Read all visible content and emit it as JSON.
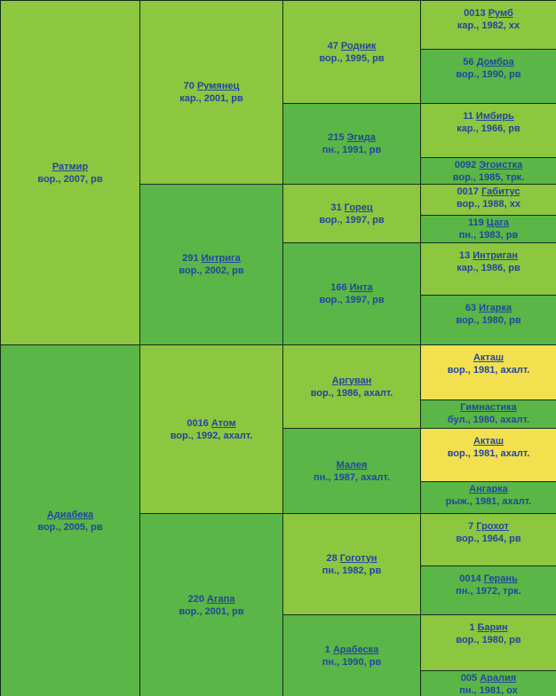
{
  "app": {
    "title": "Родословная лошади"
  },
  "colors": {
    "sire_cell_bg": "#8dc63f",
    "dam_cell_bg": "#5ab646",
    "inbreeding_highlight_bg": "#f3e04f",
    "grid_border": "#152e1a",
    "text_blue": "#21479d"
  },
  "pedigree": {
    "generations": [
      {
        "label": "generation-1",
        "cells": [
          {
            "number": "",
            "name": "Ратмир",
            "details": "вор., 2007, рв",
            "variant": "sire"
          },
          {
            "number": "",
            "name": "Адиабека",
            "details": "вор., 2005, рв",
            "variant": "dam"
          }
        ]
      },
      {
        "label": "generation-2",
        "cells": [
          {
            "number": "70",
            "name": "Румянец",
            "details": "кар., 2001, рв",
            "variant": "sire"
          },
          {
            "number": "291",
            "name": "Интрига",
            "details": "вор., 2002, рв",
            "variant": "dam"
          },
          {
            "number": "0016",
            "name": "Атом",
            "details": "вор., 1992, ахалт.",
            "variant": "sire"
          },
          {
            "number": "220",
            "name": "Агапа",
            "details": "вор., 2001, рв",
            "variant": "dam"
          }
        ]
      },
      {
        "label": "generation-3",
        "cells": [
          {
            "number": "47",
            "name": "Родник",
            "details": "вор., 1995, рв",
            "variant": "sire"
          },
          {
            "number": "215",
            "name": "Эгида",
            "details": "пн., 1991, рв",
            "variant": "dam"
          },
          {
            "number": "31",
            "name": "Горец",
            "details": "вор., 1997, рв",
            "variant": "sire"
          },
          {
            "number": "166",
            "name": "Инта",
            "details": "вор., 1997, рв",
            "variant": "dam"
          },
          {
            "number": "",
            "name": "Аргуван",
            "details": "вор., 1986, ахалт.",
            "variant": "sire"
          },
          {
            "number": "",
            "name": "Малея",
            "details": "пн., 1987, ахалт.",
            "variant": "dam"
          },
          {
            "number": "28",
            "name": "Гоготун",
            "details": "пн., 1982, рв",
            "variant": "sire"
          },
          {
            "number": "1",
            "name": "Арабеска",
            "details": "пн., 1990, рв",
            "variant": "dam"
          }
        ]
      },
      {
        "label": "generation-4",
        "cells": [
          {
            "number": "0013",
            "name": "Румб",
            "details": "кар., 1982, хх",
            "variant": "sire"
          },
          {
            "number": "56",
            "name": "Домбра",
            "details": "вор., 1990, рв",
            "variant": "dam"
          },
          {
            "number": "11",
            "name": "Имбирь",
            "details": "кар., 1966, рв",
            "variant": "sire"
          },
          {
            "number": "0092",
            "name": "Эгоистка",
            "details": "вор., 1985, трк.",
            "variant": "dam"
          },
          {
            "number": "0017",
            "name": "Габитус",
            "details": "вор., 1988, хх",
            "variant": "sire"
          },
          {
            "number": "119",
            "name": "Цага",
            "details": "пн., 1983, рв",
            "variant": "dam"
          },
          {
            "number": "13",
            "name": "Интриган",
            "details": "кар., 1986, рв",
            "variant": "sire"
          },
          {
            "number": "63",
            "name": "Игарка",
            "details": "вор., 1980, рв",
            "variant": "dam"
          },
          {
            "number": "",
            "name": "Акташ",
            "details": "вор., 1981, ахалт.",
            "variant": "highlight"
          },
          {
            "number": "",
            "name": "Гимнастика",
            "details": "бул., 1980, ахалт.",
            "variant": "dam"
          },
          {
            "number": "",
            "name": "Акташ",
            "details": "вор., 1981, ахалт.",
            "variant": "highlight"
          },
          {
            "number": "",
            "name": "Ангарка",
            "details": "рыж., 1981, ахалт.",
            "variant": "dam"
          },
          {
            "number": "7",
            "name": "Грохот",
            "details": "вор., 1964, рв",
            "variant": "sire"
          },
          {
            "number": "0014",
            "name": "Герань",
            "details": "пн., 1972, трк.",
            "variant": "dam"
          },
          {
            "number": "1",
            "name": "Барин",
            "details": "вор., 1980, рв",
            "variant": "sire"
          },
          {
            "number": "005",
            "name": "Аралия",
            "details": "пн., 1981, ох",
            "variant": "dam"
          }
        ]
      }
    ]
  }
}
